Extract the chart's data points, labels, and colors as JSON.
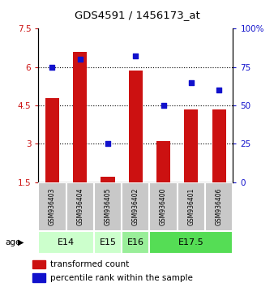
{
  "title": "GDS4591 / 1456173_at",
  "samples": [
    "GSM936403",
    "GSM936404",
    "GSM936405",
    "GSM936402",
    "GSM936400",
    "GSM936401",
    "GSM936406"
  ],
  "bar_values": [
    4.8,
    6.6,
    1.7,
    5.85,
    3.1,
    4.35,
    4.35
  ],
  "scatter_values": [
    75,
    80,
    25,
    82,
    50,
    65,
    60
  ],
  "bar_bottom": 1.5,
  "ylim_left": [
    1.5,
    7.5
  ],
  "ylim_right": [
    0,
    100
  ],
  "yticks_left": [
    1.5,
    3.0,
    4.5,
    6.0,
    7.5
  ],
  "ytick_labels_left": [
    "1.5",
    "3",
    "4.5",
    "6",
    "7.5"
  ],
  "yticks_right": [
    0,
    25,
    50,
    75,
    100
  ],
  "ytick_labels_right": [
    "0",
    "25",
    "50",
    "75",
    "100%"
  ],
  "bar_color": "#cc1111",
  "scatter_color": "#1111cc",
  "age_groups": [
    {
      "label": "E14",
      "start": 0,
      "end": 2,
      "color": "#ccffcc"
    },
    {
      "label": "E15",
      "start": 2,
      "end": 3,
      "color": "#ccffcc"
    },
    {
      "label": "E16",
      "start": 3,
      "end": 4,
      "color": "#99ee99"
    },
    {
      "label": "E17.5",
      "start": 4,
      "end": 7,
      "color": "#55dd55"
    }
  ],
  "legend_bar_label": "transformed count",
  "legend_scatter_label": "percentile rank within the sample",
  "dotted_grid_values": [
    3.0,
    4.5,
    6.0
  ],
  "bar_width": 0.5
}
